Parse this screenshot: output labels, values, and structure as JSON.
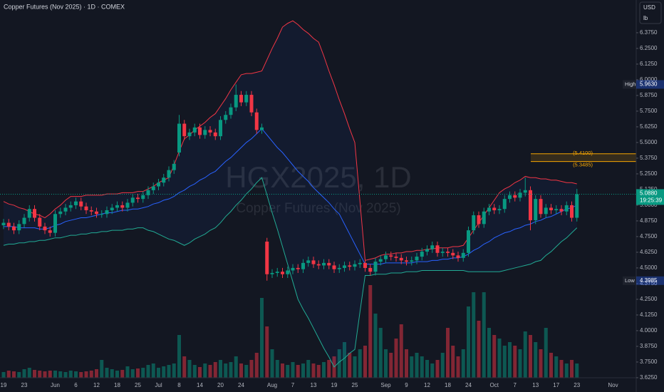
{
  "chart_data": {
    "type": "candlestick",
    "title": "Copper Futures (Nov 2025) · 1D · COMEX",
    "watermark": "HGX2025, 1D",
    "watermark_subtitle": "Copper Futures (Nov 2025)",
    "currency": "USD",
    "unit": "lb",
    "categories": [
      "19",
      null,
      null,
      null,
      "23",
      null,
      null,
      null,
      null,
      null,
      "Jun",
      null,
      null,
      null,
      "6",
      null,
      null,
      null,
      "12",
      null,
      null,
      null,
      "18",
      null,
      null,
      null,
      "25",
      null,
      null,
      null,
      "Jul",
      null,
      null,
      null,
      "8",
      null,
      null,
      null,
      "14",
      null,
      null,
      null,
      "20",
      null,
      null,
      null,
      "24",
      null,
      null,
      null,
      null,
      null,
      "Aug",
      null,
      null,
      null,
      "7",
      null,
      null,
      null,
      "13",
      null,
      null,
      null,
      "19",
      null,
      null,
      null,
      "25",
      null,
      null,
      null,
      null,
      null,
      "Sep",
      null,
      null,
      null,
      "9",
      null,
      null,
      null,
      "12",
      null,
      null,
      null,
      "18",
      null,
      null,
      null,
      "24",
      null,
      null,
      null,
      null,
      "Oct",
      null,
      null,
      null,
      "7",
      null,
      null,
      null,
      "13",
      null,
      null,
      null,
      "17",
      null,
      null,
      null,
      "23",
      null,
      null,
      null,
      null,
      null,
      null,
      "Nov"
    ],
    "open": [
      4.84,
      4.86,
      4.83,
      4.8,
      4.85,
      4.9,
      4.97,
      4.9,
      4.83,
      4.8,
      4.78,
      4.93,
      4.95,
      4.98,
      5.0,
      5.03,
      4.99,
      4.96,
      4.95,
      4.93,
      4.93,
      4.96,
      4.98,
      5.0,
      4.98,
      5.02,
      5.06,
      5.05,
      5.08,
      5.12,
      5.15,
      5.18,
      5.22,
      5.28,
      5.42,
      5.65,
      5.55,
      5.58,
      5.62,
      5.56,
      5.6,
      5.58,
      5.55,
      5.68,
      5.72,
      5.78,
      5.88,
      5.82,
      5.88,
      5.74,
      5.6,
      4.71,
      4.45,
      4.46,
      4.47,
      4.45,
      4.48,
      4.5,
      4.49,
      4.54,
      4.56,
      4.53,
      4.52,
      4.54,
      4.52,
      4.49,
      4.5,
      4.52,
      4.51,
      4.53,
      4.54,
      4.5,
      4.47,
      4.55,
      4.57,
      4.6,
      4.59,
      4.58,
      4.56,
      4.55,
      4.56,
      4.59,
      4.63,
      4.65,
      4.68,
      4.62,
      4.63,
      4.62,
      4.6,
      4.58,
      4.62,
      4.8,
      4.92,
      4.85,
      4.95,
      4.98,
      4.96,
      4.97,
      5.05,
      5.08,
      5.06,
      5.1,
      5.12,
      4.88,
      5.05,
      4.93,
      4.98,
      4.96,
      4.97,
      4.95,
      5.0,
      4.9,
      null,
      null,
      null,
      null,
      null,
      null,
      null
    ],
    "high": [
      4.89,
      4.89,
      4.86,
      4.88,
      4.93,
      5.0,
      5.0,
      4.93,
      4.86,
      4.83,
      4.96,
      4.98,
      5.01,
      5.03,
      5.06,
      5.06,
      5.02,
      4.99,
      4.98,
      4.96,
      4.99,
      5.01,
      5.03,
      5.03,
      5.05,
      5.09,
      5.09,
      5.11,
      5.15,
      5.18,
      5.21,
      5.25,
      5.31,
      5.36,
      5.72,
      5.68,
      5.61,
      5.65,
      5.65,
      5.63,
      5.63,
      5.61,
      5.71,
      5.75,
      5.81,
      5.963,
      5.91,
      5.91,
      5.91,
      5.77,
      5.65,
      4.74,
      4.49,
      4.5,
      4.5,
      4.51,
      4.53,
      4.53,
      4.57,
      4.59,
      4.59,
      4.56,
      4.57,
      4.57,
      4.55,
      4.53,
      4.55,
      4.55,
      4.56,
      4.57,
      4.57,
      4.53,
      4.58,
      4.6,
      4.63,
      4.63,
      4.62,
      4.61,
      4.59,
      4.59,
      4.62,
      4.66,
      4.68,
      4.71,
      4.71,
      4.66,
      4.66,
      4.65,
      4.63,
      4.65,
      4.83,
      4.95,
      4.95,
      4.98,
      5.01,
      5.01,
      5.0,
      5.08,
      5.11,
      5.11,
      5.13,
      5.22,
      5.15,
      5.08,
      5.08,
      5.01,
      5.01,
      5.0,
      5.0,
      5.03,
      5.03,
      5.13,
      null,
      null,
      null,
      null,
      null,
      null,
      null
    ],
    "low": [
      4.81,
      4.8,
      4.77,
      4.77,
      4.82,
      4.87,
      4.87,
      4.8,
      4.77,
      4.75,
      4.75,
      4.9,
      4.92,
      4.95,
      4.97,
      4.96,
      4.93,
      4.92,
      4.9,
      4.9,
      4.9,
      4.93,
      4.95,
      4.95,
      4.95,
      4.99,
      5.02,
      5.02,
      5.05,
      5.09,
      5.12,
      5.15,
      5.19,
      5.25,
      5.39,
      5.52,
      5.52,
      5.55,
      5.53,
      5.53,
      5.55,
      5.52,
      5.52,
      5.65,
      5.69,
      5.75,
      5.79,
      5.79,
      5.71,
      5.57,
      5.57,
      4.3985,
      4.42,
      4.43,
      4.42,
      4.42,
      4.45,
      4.46,
      4.46,
      4.51,
      4.5,
      4.49,
      4.49,
      4.49,
      4.46,
      4.46,
      4.47,
      4.48,
      4.48,
      4.5,
      4.47,
      4.44,
      4.44,
      4.52,
      4.54,
      4.56,
      4.55,
      4.53,
      4.52,
      4.52,
      4.53,
      4.56,
      4.6,
      4.62,
      4.59,
      4.59,
      4.59,
      4.57,
      4.55,
      4.55,
      4.59,
      4.77,
      4.82,
      4.82,
      4.92,
      4.93,
      4.93,
      4.94,
      5.02,
      5.03,
      5.03,
      5.07,
      4.8,
      4.85,
      4.9,
      4.9,
      4.93,
      4.93,
      4.92,
      4.92,
      4.87,
      4.87,
      null,
      null,
      null,
      null,
      null,
      null,
      null
    ],
    "close": [
      4.86,
      4.83,
      4.8,
      4.85,
      4.9,
      4.97,
      4.9,
      4.83,
      4.8,
      4.78,
      4.93,
      4.95,
      4.98,
      5.0,
      5.03,
      4.99,
      4.96,
      4.95,
      4.93,
      4.93,
      4.96,
      4.98,
      5.0,
      4.98,
      5.02,
      5.06,
      5.05,
      5.08,
      5.12,
      5.15,
      5.18,
      5.22,
      5.28,
      5.33,
      5.65,
      5.55,
      5.58,
      5.62,
      5.56,
      5.6,
      5.58,
      5.55,
      5.68,
      5.72,
      5.78,
      5.88,
      5.82,
      5.88,
      5.74,
      5.6,
      5.62,
      4.45,
      4.46,
      4.47,
      4.45,
      4.48,
      4.5,
      4.49,
      4.54,
      4.56,
      4.53,
      4.52,
      4.54,
      4.52,
      4.49,
      4.5,
      4.52,
      4.51,
      4.53,
      4.54,
      4.5,
      4.47,
      4.55,
      4.57,
      4.6,
      4.59,
      4.58,
      4.56,
      4.55,
      4.56,
      4.59,
      4.63,
      4.65,
      4.68,
      4.62,
      4.63,
      4.62,
      4.6,
      4.58,
      4.62,
      4.8,
      4.92,
      4.85,
      4.95,
      4.98,
      4.96,
      4.97,
      5.05,
      5.08,
      5.06,
      5.1,
      5.12,
      4.88,
      5.05,
      4.93,
      4.98,
      4.96,
      4.97,
      4.95,
      5.0,
      4.9,
      5.088,
      null,
      null,
      null,
      null,
      null,
      null,
      null
    ],
    "volume": [
      8,
      10,
      9,
      8,
      12,
      14,
      11,
      10,
      9,
      10,
      10,
      9,
      8,
      10,
      9,
      8,
      9,
      10,
      12,
      25,
      14,
      12,
      10,
      11,
      16,
      12,
      13,
      14,
      18,
      20,
      14,
      16,
      18,
      20,
      60,
      30,
      25,
      18,
      15,
      20,
      18,
      22,
      25,
      20,
      22,
      30,
      20,
      18,
      25,
      35,
      112,
      72,
      40,
      25,
      20,
      18,
      22,
      18,
      20,
      25,
      20,
      18,
      22,
      25,
      30,
      40,
      50,
      35,
      30,
      40,
      45,
      130,
      90,
      70,
      40,
      35,
      55,
      75,
      40,
      30,
      35,
      30,
      25,
      20,
      25,
      35,
      70,
      45,
      30,
      40,
      100,
      120,
      80,
      120,
      70,
      60,
      55,
      45,
      50,
      45,
      40,
      65,
      60,
      50,
      40,
      70,
      35,
      30,
      25,
      20,
      25,
      20,
      null,
      null,
      null,
      null,
      null,
      null,
      null
    ],
    "bb_upper": [
      5.03,
      5.01,
      5.0,
      4.98,
      4.97,
      4.95,
      4.93,
      4.92,
      4.9,
      4.93,
      4.97,
      5.0,
      5.04,
      5.07,
      5.07,
      5.07,
      5.08,
      5.08,
      5.08,
      5.08,
      5.09,
      5.09,
      5.09,
      5.1,
      5.1,
      5.1,
      5.11,
      5.11,
      5.13,
      5.15,
      5.18,
      5.2,
      5.22,
      5.32,
      5.43,
      5.53,
      5.56,
      5.6,
      5.63,
      5.66,
      5.7,
      5.73,
      5.79,
      5.85,
      5.92,
      5.98,
      6.04,
      6.05,
      6.05,
      6.06,
      6.07,
      6.16,
      6.25,
      6.33,
      6.42,
      6.45,
      6.47,
      6.44,
      6.4,
      6.37,
      6.33,
      6.3,
      6.19,
      6.07,
      5.96,
      5.84,
      5.73,
      5.61,
      5.5,
      5.03,
      4.56,
      4.57,
      4.58,
      4.6,
      4.61,
      4.61,
      4.62,
      4.62,
      4.63,
      4.63,
      4.64,
      4.64,
      4.65,
      4.65,
      4.66,
      4.66,
      4.66,
      4.67,
      4.67,
      4.68,
      4.74,
      4.8,
      4.86,
      4.92,
      4.98,
      5.04,
      5.1,
      5.13,
      5.15,
      5.18,
      5.2,
      5.23,
      5.22,
      5.22,
      5.21,
      5.21,
      5.2,
      5.2,
      5.19,
      5.18,
      5.18,
      5.17,
      null,
      null,
      null,
      null,
      null,
      null,
      null
    ],
    "bb_middle": [
      4.83,
      4.83,
      4.83,
      4.82,
      4.82,
      4.82,
      4.82,
      4.81,
      4.81,
      4.82,
      4.84,
      4.85,
      4.87,
      4.88,
      4.89,
      4.9,
      4.9,
      4.91,
      4.92,
      4.93,
      4.94,
      4.94,
      4.95,
      4.96,
      4.96,
      4.97,
      4.97,
      4.98,
      4.99,
      5.01,
      5.02,
      5.04,
      5.05,
      5.07,
      5.1,
      5.12,
      5.15,
      5.17,
      5.2,
      5.22,
      5.25,
      5.27,
      5.31,
      5.35,
      5.38,
      5.42,
      5.46,
      5.5,
      5.53,
      5.57,
      5.61,
      5.56,
      5.51,
      5.46,
      5.42,
      5.37,
      5.32,
      5.27,
      5.23,
      5.19,
      5.14,
      5.1,
      5.06,
      5.02,
      4.97,
      4.93,
      4.85,
      4.77,
      4.69,
      4.61,
      4.53,
      4.53,
      4.53,
      4.53,
      4.54,
      4.54,
      4.54,
      4.54,
      4.54,
      4.54,
      4.55,
      4.55,
      4.55,
      4.56,
      4.56,
      4.57,
      4.57,
      4.58,
      4.58,
      4.59,
      4.61,
      4.64,
      4.66,
      4.69,
      4.71,
      4.74,
      4.76,
      4.78,
      4.79,
      4.81,
      4.82,
      4.84,
      4.85,
      4.87,
      4.88,
      4.9,
      4.91,
      4.93,
      4.95,
      4.97,
      4.98,
      5.0,
      null,
      null,
      null,
      null,
      null,
      null,
      null
    ],
    "bb_lower": [
      4.68,
      4.69,
      4.69,
      4.7,
      4.7,
      4.71,
      4.71,
      4.72,
      4.72,
      4.73,
      4.74,
      4.74,
      4.75,
      4.76,
      4.76,
      4.77,
      4.77,
      4.78,
      4.78,
      4.79,
      4.79,
      4.8,
      4.8,
      4.8,
      4.81,
      4.81,
      4.82,
      4.82,
      4.8,
      4.79,
      4.77,
      4.75,
      4.73,
      4.72,
      4.7,
      4.68,
      4.7,
      4.73,
      4.75,
      4.77,
      4.8,
      4.82,
      4.86,
      4.91,
      4.95,
      5.0,
      5.04,
      5.09,
      5.13,
      5.18,
      5.22,
      5.08,
      4.94,
      4.81,
      4.67,
      4.53,
      4.39,
      4.25,
      4.17,
      4.1,
      4.02,
      3.94,
      3.86,
      3.79,
      3.71,
      3.75,
      3.78,
      3.82,
      3.85,
      4.15,
      4.44,
      4.44,
      4.45,
      4.45,
      4.45,
      4.46,
      4.46,
      4.46,
      4.47,
      4.47,
      4.47,
      4.48,
      4.48,
      4.48,
      4.48,
      4.48,
      4.48,
      4.48,
      4.48,
      4.48,
      4.47,
      4.47,
      4.47,
      4.47,
      4.47,
      4.47,
      4.47,
      4.48,
      4.49,
      4.5,
      4.51,
      4.52,
      4.53,
      4.55,
      4.56,
      4.6,
      4.63,
      4.67,
      4.71,
      4.74,
      4.78,
      4.82,
      null,
      null,
      null,
      null,
      null,
      null,
      null
    ],
    "up_color": "#089981",
    "down_color": "#f23645",
    "band_colors": {
      "upper": "#f23645",
      "middle": "#2962ff",
      "lower": "#22ab94"
    },
    "ylim": [
      3.511,
      6.636
    ],
    "yticks": [
      {
        "value": 3.625,
        "label": "3.6250"
      },
      {
        "value": 3.75,
        "label": "3.7500"
      },
      {
        "value": 3.875,
        "label": "3.8750"
      },
      {
        "value": 4.0,
        "label": "4.0000"
      },
      {
        "value": 4.125,
        "label": "4.1250"
      },
      {
        "value": 4.25,
        "label": "4.2500"
      },
      {
        "value": 4.375,
        "label": "4.3750"
      },
      {
        "value": 4.5,
        "label": "4.5000"
      },
      {
        "value": 4.625,
        "label": "4.6250"
      },
      {
        "value": 4.75,
        "label": "4.7500"
      },
      {
        "value": 4.875,
        "label": "4.8750"
      },
      {
        "value": 5.0,
        "label": "5.0000"
      },
      {
        "value": 5.125,
        "label": "5.1250"
      },
      {
        "value": 5.25,
        "label": "5.2500"
      },
      {
        "value": 5.375,
        "label": "5.3750"
      },
      {
        "value": 5.5,
        "label": "5.5000"
      },
      {
        "value": 5.625,
        "label": "5.6250"
      },
      {
        "value": 5.75,
        "label": "5.7500"
      },
      {
        "value": 5.875,
        "label": "5.8750"
      },
      {
        "value": 6.0,
        "label": "6.0000"
      },
      {
        "value": 6.125,
        "label": "6.1250"
      },
      {
        "value": 6.25,
        "label": "6.2500"
      },
      {
        "value": 6.375,
        "label": "6.3750"
      }
    ],
    "grid": false,
    "levels": [
      {
        "value": 5.41,
        "label": "(5.4100)"
      },
      {
        "value": 5.3485,
        "label": "(5.3485)"
      }
    ],
    "level_color": "#f7a600",
    "high_badge": {
      "name": "High",
      "value": 5.963,
      "label": "5.9630"
    },
    "low_badge": {
      "name": "Low",
      "value": 4.3985,
      "label": "4.3985"
    },
    "price_badge": {
      "value": 5.088,
      "label": "5.0880",
      "countdown": "19:25:39"
    }
  }
}
